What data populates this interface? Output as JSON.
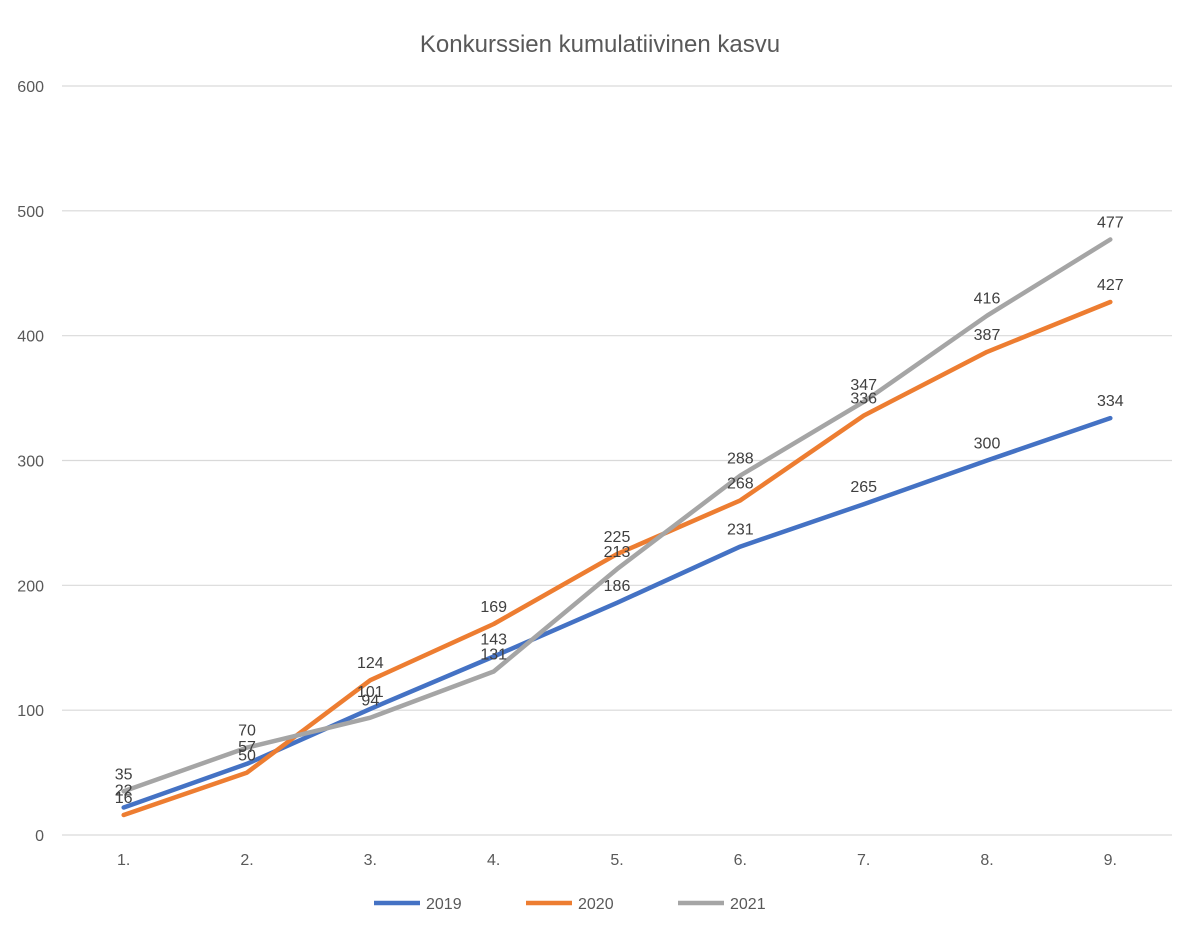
{
  "chart_data": {
    "type": "line",
    "title": "Konkurssien kumulatiivinen kasvu",
    "categories": [
      "1.",
      "2.",
      "3.",
      "4.",
      "5.",
      "6.",
      "7.",
      "8.",
      "9."
    ],
    "ylim": [
      0,
      600
    ],
    "yticks": [
      "0",
      "100",
      "200",
      "300",
      "400",
      "500",
      "600"
    ],
    "grid": true,
    "legend_position": "bottom",
    "series": [
      {
        "name": "2019",
        "color": "#4472C4",
        "values": [
          22,
          57,
          101,
          143,
          186,
          231,
          265,
          300,
          334
        ]
      },
      {
        "name": "2020",
        "color": "#ED7D31",
        "values": [
          16,
          50,
          124,
          169,
          225,
          268,
          336,
          387,
          427
        ]
      },
      {
        "name": "2021",
        "color": "#A5A5A5",
        "values": [
          35,
          70,
          94,
          131,
          213,
          288,
          347,
          416,
          477
        ]
      }
    ]
  }
}
